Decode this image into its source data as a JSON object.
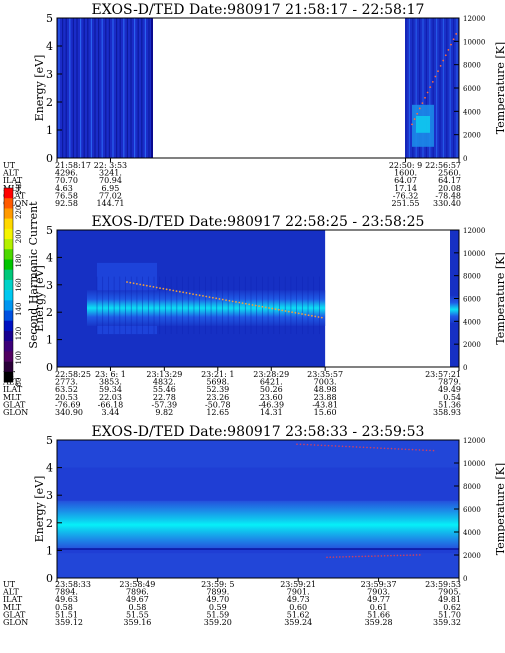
{
  "colorbar": {
    "label": "Second Harmonic Current",
    "ticks": [
      "240",
      "220",
      "200",
      "180",
      "160",
      "140",
      "120",
      "100",
      "80"
    ],
    "colors": [
      "#ff0000",
      "#ff5a00",
      "#ff9a00",
      "#ffd800",
      "#f4f400",
      "#b4f000",
      "#4cd800",
      "#00c400",
      "#00c87a",
      "#00d2c8",
      "#00c8f0",
      "#0096f0",
      "#0050e0",
      "#0010c0",
      "#180090",
      "#3c0078",
      "#500060",
      "#2a0038",
      "#000000"
    ]
  },
  "chart_data": [
    {
      "type": "heatmap",
      "title": "EXOS-D/TED  Date:980917  21:58:17 - 22:58:17",
      "ylabel": "Energy [eV]",
      "ylabel_right": "Temperature [K]",
      "ylim": [
        0,
        5
      ],
      "ylim_right": [
        0,
        12000
      ],
      "yticks": [
        "0",
        "1",
        "2",
        "3",
        "4",
        "5"
      ],
      "yticks_right": [
        "0",
        "2000",
        "4000",
        "6000",
        "8000",
        "10000",
        "12000"
      ],
      "data_segments": [
        {
          "from": "21:58:17",
          "to": "22:08:50",
          "level": "low"
        },
        {
          "from": "22:50:09",
          "to": "22:58:17",
          "level": "low"
        }
      ],
      "orbit": {
        "row_labels": [
          "UT",
          "ALT",
          "ILAT",
          "MLT",
          "GLAT",
          "GLON"
        ],
        "columns": [
          {
            "t": 0.0,
            "values": [
              "21:58:17",
              "4296.",
              "70.70",
              "4.63",
              "76.58",
              "92.58"
            ]
          },
          {
            "t": 0.133,
            "values": [
              "22: 3:53",
              "3241.",
              "70.94",
              "6.95",
              "77.02",
              "144.71"
            ]
          },
          {
            "t": 0.867,
            "values": [
              "22:50: 9",
              "1600.",
              "64.07",
              "17.14",
              "-76.32",
              "251.55"
            ]
          },
          {
            "t": 1.0,
            "values": [
              "22:56:57",
              "2560.",
              "64.17",
              "20.08",
              "-78.48",
              "330.40"
            ]
          }
        ]
      }
    },
    {
      "type": "heatmap",
      "title": "EXOS-D/TED  Date:980917  22:58:25 - 23:58:25",
      "ylabel": "Energy [eV]",
      "ylabel_right": "Temperature [K]",
      "ylim": [
        0,
        5
      ],
      "ylim_right": [
        0,
        12000
      ],
      "yticks": [
        "0",
        "1",
        "2",
        "3",
        "4",
        "5"
      ],
      "yticks_right": [
        "0",
        "2000",
        "4000",
        "6000",
        "8000",
        "10000",
        "12000"
      ],
      "band_center_ev": 2.2,
      "orbit": {
        "row_labels": [
          "UT",
          "ALT",
          "ILAT",
          "MLT",
          "GLAT",
          "GLON"
        ],
        "columns": [
          {
            "t": 0.0,
            "values": [
              "22:58:25",
              "2773.",
              "63.52",
              "20.53",
              "-76.69",
              "340.90"
            ]
          },
          {
            "t": 0.133,
            "values": [
              "23: 6: 1",
              "3853.",
              "59.34",
              "22.03",
              "-66.18",
              "3.44"
            ]
          },
          {
            "t": 0.267,
            "values": [
              "23:13:29",
              "4832.",
              "55.46",
              "22.78",
              "-57.39",
              "9.82"
            ]
          },
          {
            "t": 0.4,
            "values": [
              "23:21: 1",
              "5698.",
              "52.39",
              "23.26",
              "-50.78",
              "12.65"
            ]
          },
          {
            "t": 0.533,
            "values": [
              "23:28:29",
              "6421.",
              "50.26",
              "23.60",
              "-46.39",
              "14.31"
            ]
          },
          {
            "t": 0.667,
            "values": [
              "23:35:57",
              "7003.",
              "48.98",
              "23.88",
              "-43.81",
              "15.60"
            ]
          },
          {
            "t": 1.0,
            "values": [
              "23:57:21",
              "7879.",
              "49.49",
              "0.54",
              "51.36",
              "358.93"
            ]
          }
        ]
      }
    },
    {
      "type": "heatmap",
      "title": "EXOS-D/TED  Date:980917  23:58:33 - 23:59:53",
      "ylabel": "Energy [eV]",
      "ylabel_right": "Temperature [K]",
      "ylim": [
        0,
        5
      ],
      "ylim_right": [
        0,
        12000
      ],
      "yticks": [
        "0",
        "1",
        "2",
        "3",
        "4",
        "5"
      ],
      "yticks_right": [
        "0",
        "2000",
        "4000",
        "6000",
        "8000",
        "10000",
        "12000"
      ],
      "band_center_ev": 1.9,
      "orbit": {
        "row_labels": [
          "UT",
          "ALT",
          "ILAT",
          "MLT",
          "GLAT",
          "GLON"
        ],
        "columns": [
          {
            "t": 0.0,
            "values": [
              "23:58:33",
              "7894.",
              "49.63",
              "0.58",
              "51.51",
              "359.12"
            ]
          },
          {
            "t": 0.2,
            "values": [
              "23:58:49",
              "7896.",
              "49.67",
              "0.58",
              "51.55",
              "359.16"
            ]
          },
          {
            "t": 0.4,
            "values": [
              "23:59: 5",
              "7899.",
              "49.70",
              "0.59",
              "51.59",
              "359.20"
            ]
          },
          {
            "t": 0.6,
            "values": [
              "23:59:21",
              "7901.",
              "49.73",
              "0.60",
              "51.62",
              "359.24"
            ]
          },
          {
            "t": 0.8,
            "values": [
              "23:59:37",
              "7903.",
              "49.77",
              "0.61",
              "51.66",
              "359.28"
            ]
          },
          {
            "t": 1.0,
            "values": [
              "23:59:53",
              "7905.",
              "49.81",
              "0.62",
              "51.70",
              "359.32"
            ]
          }
        ]
      }
    }
  ]
}
